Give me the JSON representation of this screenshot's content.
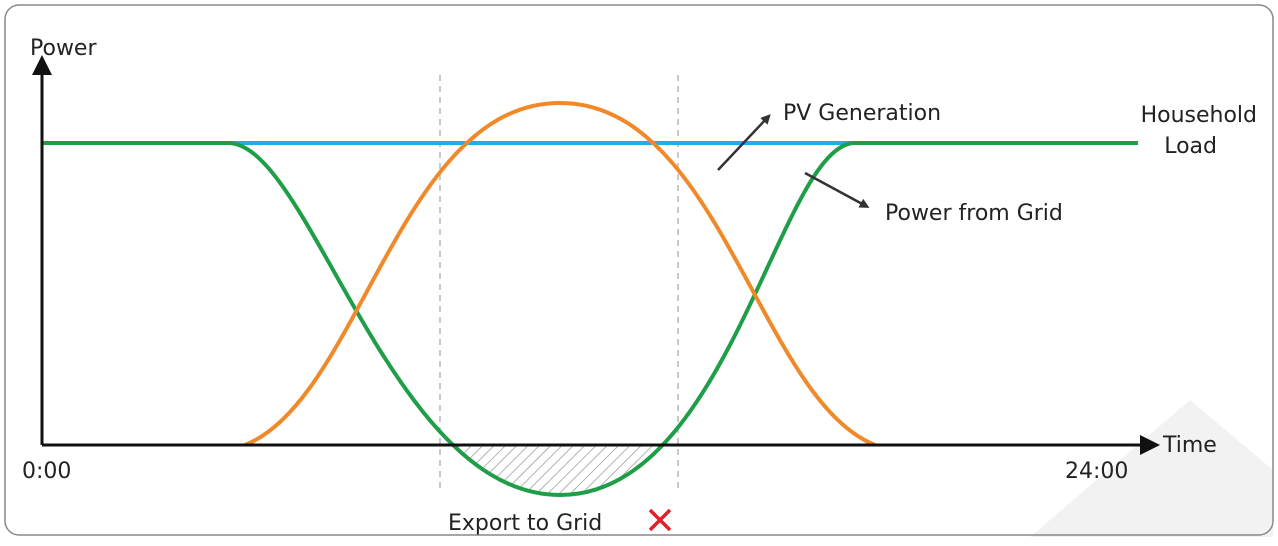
{
  "axes": {
    "y_label": "Power",
    "x_label": "Time",
    "x_start": "0:00",
    "x_end": "24:00"
  },
  "labels": {
    "pv": "PV Generation",
    "load_line1": "Household",
    "load_line2": "Load",
    "grid": "Power from Grid",
    "export": "Export to Grid"
  }
}
